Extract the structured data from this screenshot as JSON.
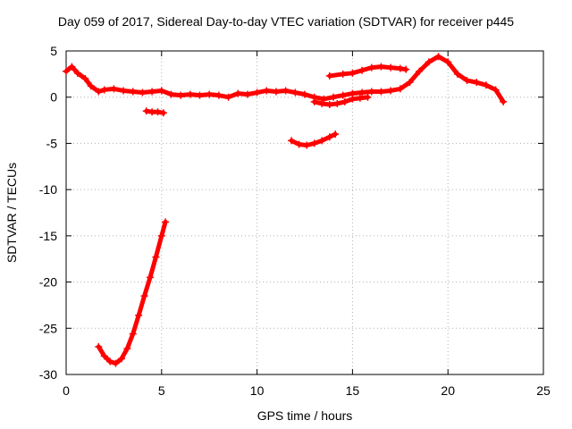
{
  "chart_data": {
    "type": "scatter",
    "title": "Day 059 of 2017, Sidereal Day-to-day VTEC variation (SDTVAR) for receiver p445",
    "xlabel": "GPS time / hours",
    "ylabel": "SDTVAR / TECUs",
    "xlim": [
      0,
      25
    ],
    "ylim": [
      -30,
      5
    ],
    "xticks": [
      0,
      5,
      10,
      15,
      20,
      25
    ],
    "yticks": [
      -30,
      -25,
      -20,
      -15,
      -10,
      -5,
      0,
      5
    ],
    "grid": true,
    "marker": "+",
    "series_color": "#ff0000",
    "series": [
      {
        "name": "main-trace",
        "x": [
          0.0,
          0.3,
          0.6,
          1.0,
          1.3,
          1.7,
          2.0,
          2.5,
          3.0,
          3.5,
          4.0,
          4.5,
          5.0,
          5.5,
          6.0,
          6.5,
          7.0,
          7.5,
          8.0,
          8.5,
          9.0,
          9.5,
          10.0,
          10.5,
          11.0,
          11.5,
          12.0,
          12.5,
          13.0,
          13.5,
          14.0,
          14.5,
          15.0,
          15.5,
          16.0,
          16.5,
          17.0,
          17.5,
          18.0,
          18.5,
          19.0,
          19.5,
          20.0,
          20.5,
          21.0,
          21.5,
          22.0,
          22.5,
          22.9
        ],
        "y": [
          2.8,
          3.3,
          2.6,
          2.0,
          1.2,
          0.6,
          0.8,
          0.9,
          0.7,
          0.6,
          0.5,
          0.6,
          0.7,
          0.3,
          0.2,
          0.3,
          0.2,
          0.3,
          0.2,
          0.0,
          0.4,
          0.3,
          0.5,
          0.7,
          0.6,
          0.7,
          0.5,
          0.3,
          0.0,
          -0.2,
          0.0,
          0.2,
          0.4,
          0.5,
          0.6,
          0.6,
          0.7,
          0.9,
          1.6,
          2.8,
          3.8,
          4.4,
          3.8,
          2.5,
          1.8,
          1.6,
          1.3,
          0.8,
          -0.5
        ]
      },
      {
        "name": "dip-segment",
        "x": [
          13.0,
          13.4,
          13.8,
          14.2,
          14.6,
          15.0,
          15.4,
          15.8
        ],
        "y": [
          -0.5,
          -0.7,
          -0.8,
          -0.7,
          -0.5,
          -0.2,
          -0.1,
          0.0
        ]
      },
      {
        "name": "upper-segment",
        "x": [
          13.8,
          14.5,
          15.0,
          15.5,
          16.0,
          16.5,
          17.0,
          17.5,
          17.8
        ],
        "y": [
          2.3,
          2.5,
          2.6,
          2.9,
          3.2,
          3.3,
          3.2,
          3.1,
          3.0
        ]
      },
      {
        "name": "short-segment-5h",
        "x": [
          4.2,
          4.5,
          4.8,
          5.1
        ],
        "y": [
          -1.5,
          -1.6,
          -1.6,
          -1.7
        ]
      },
      {
        "name": "negative-segment-12h",
        "x": [
          11.8,
          12.2,
          12.6,
          13.0,
          13.4,
          13.8,
          14.1
        ],
        "y": [
          -4.7,
          -5.1,
          -5.2,
          -5.0,
          -4.7,
          -4.3,
          -4.0
        ]
      },
      {
        "name": "deep-trough",
        "x": [
          1.7,
          2.0,
          2.3,
          2.6,
          2.9,
          3.2,
          3.5,
          3.8,
          4.1,
          4.4,
          4.7,
          5.0,
          5.2
        ],
        "y": [
          -27.0,
          -28.0,
          -28.6,
          -28.8,
          -28.3,
          -27.2,
          -25.6,
          -23.6,
          -21.5,
          -19.5,
          -17.3,
          -15.0,
          -13.5
        ]
      }
    ]
  }
}
